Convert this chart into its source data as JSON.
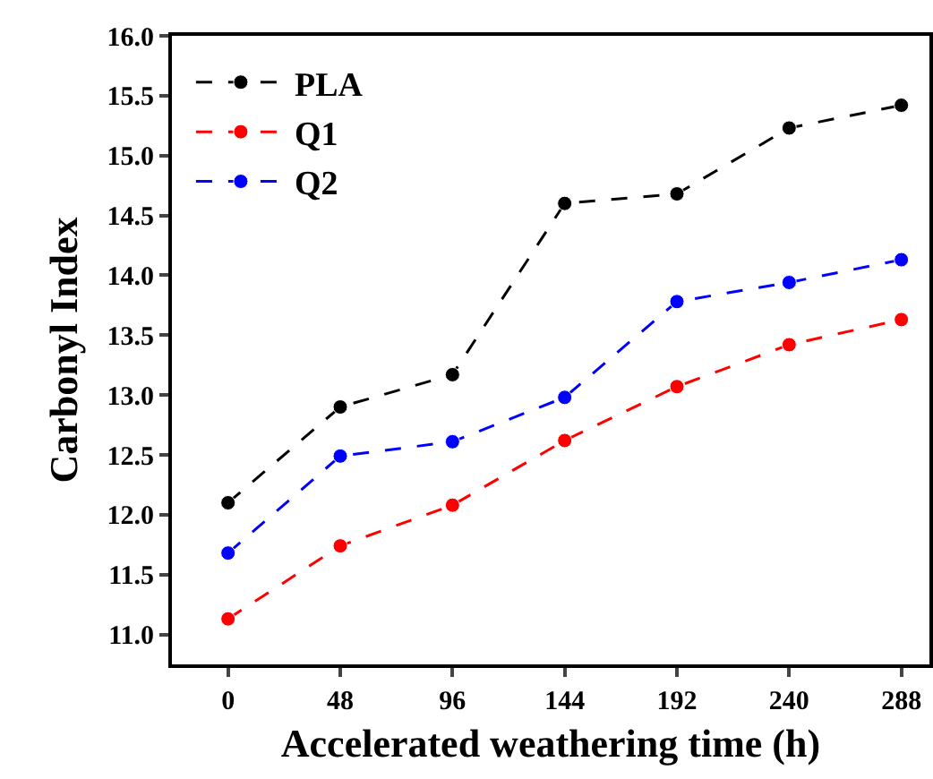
{
  "chart_data": {
    "type": "line",
    "xlabel": "Accelerated weathering time (h)",
    "ylabel": "Carbonyl Index",
    "x": [
      0,
      48,
      96,
      144,
      192,
      240,
      288
    ],
    "series": [
      {
        "name": "PLA",
        "color": "#000000",
        "values": [
          12.1,
          12.9,
          13.17,
          14.6,
          14.68,
          15.23,
          15.42
        ]
      },
      {
        "name": "Q1",
        "color": "#ff0000",
        "values": [
          11.13,
          11.74,
          12.08,
          12.62,
          13.07,
          13.42,
          13.63
        ]
      },
      {
        "name": "Q2",
        "color": "#0000ff",
        "values": [
          11.68,
          12.49,
          12.61,
          12.98,
          13.78,
          13.94,
          14.13
        ]
      }
    ],
    "xlim": [
      -24,
      300
    ],
    "xticks": [
      0,
      48,
      96,
      144,
      192,
      240,
      288
    ],
    "ylim": [
      10.75,
      16.0
    ],
    "yticks": [
      {
        "value": 11,
        "label": "11.0"
      },
      {
        "value": 11.5,
        "label": "11.5"
      },
      {
        "value": 12,
        "label": "12.0"
      },
      {
        "value": 12.5,
        "label": "12.5"
      },
      {
        "value": 13,
        "label": "13.0"
      },
      {
        "value": 13.5,
        "label": "13.5"
      },
      {
        "value": 14,
        "label": "14.0"
      },
      {
        "value": 14.5,
        "label": "14.5"
      },
      {
        "value": 15,
        "label": "15.0"
      },
      {
        "value": 15.5,
        "label": "15.5"
      },
      {
        "value": 16,
        "label": "16.0"
      }
    ],
    "grid": false,
    "legend": "top left",
    "marker": "circle",
    "line_style": "dashed"
  }
}
